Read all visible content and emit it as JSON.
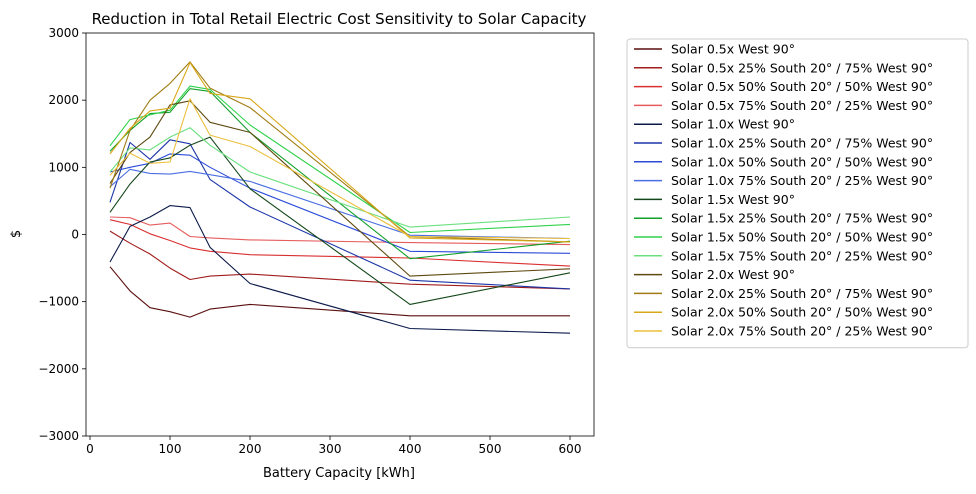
{
  "chart_data": {
    "type": "line",
    "title": "Reduction in Total Retail Electric Cost Sensitivity to Solar Capacity",
    "xlabel": "Battery Capacity [kWh]",
    "ylabel": "$",
    "xlim": [
      -5,
      630
    ],
    "ylim": [
      -3000,
      3000
    ],
    "xticks": [
      0,
      100,
      200,
      300,
      400,
      500,
      600
    ],
    "yticks": [
      -3000,
      -2000,
      -1000,
      0,
      1000,
      2000,
      3000
    ],
    "ytick_labels": [
      "−3000",
      "−2000",
      "−1000",
      "0",
      "1000",
      "2000",
      "3000"
    ],
    "grid": false,
    "legend_position": "outside right",
    "x": [
      25,
      50,
      75,
      100,
      125,
      150,
      200,
      400,
      600
    ],
    "series": [
      {
        "name": "Solar 0.5x West 90°",
        "color": "#5c0f0f",
        "values": [
          -480,
          -840,
          -1090,
          -1150,
          -1230,
          -1110,
          -1040,
          -1210,
          -1210
        ]
      },
      {
        "name": "Solar 0.5x 25% South 20° / 75% West 90°",
        "color": "#a11c1c",
        "values": [
          50,
          -130,
          -290,
          -500,
          -670,
          -620,
          -590,
          -740,
          -810
        ]
      },
      {
        "name": "Solar 0.5x 50% South 20° / 50% West 90°",
        "color": "#d93030",
        "values": [
          220,
          150,
          10,
          -90,
          -200,
          -250,
          -300,
          -350,
          -470
        ]
      },
      {
        "name": "Solar 0.5x 75% South 20° / 25% West 90°",
        "color": "#e65c5c",
        "values": [
          260,
          250,
          140,
          170,
          -30,
          -50,
          -80,
          -120,
          -150
        ]
      },
      {
        "name": "Solar 1.0x West 90°",
        "color": "#0c1a4a",
        "values": [
          -410,
          120,
          260,
          430,
          400,
          -190,
          -730,
          -1400,
          -1470
        ]
      },
      {
        "name": "Solar 1.0x 25% South 20° / 75% West 90°",
        "color": "#1c36a8",
        "values": [
          480,
          1370,
          1120,
          1410,
          1350,
          820,
          410,
          -680,
          -810
        ]
      },
      {
        "name": "Solar 1.0x 50% South 20° / 50% West 90°",
        "color": "#2b4bd8",
        "values": [
          930,
          1000,
          1060,
          1200,
          1180,
          1000,
          690,
          -250,
          -280
        ]
      },
      {
        "name": "Solar 1.0x 75% South 20° / 25% West 90°",
        "color": "#4a6ee3",
        "values": [
          710,
          970,
          910,
          900,
          940,
          890,
          790,
          -10,
          -60
        ]
      },
      {
        "name": "Solar 1.5x West 90°",
        "color": "#14481a",
        "values": [
          330,
          750,
          1080,
          1140,
          1330,
          1450,
          680,
          -1040,
          -570
        ]
      },
      {
        "name": "Solar 1.5x 25% South 20° / 75% West 90°",
        "color": "#12a02a",
        "values": [
          1240,
          1550,
          1800,
          1820,
          2170,
          2130,
          1520,
          -360,
          -100
        ]
      },
      {
        "name": "Solar 1.5x 50% South 20° / 50% West 90°",
        "color": "#2fd24a",
        "values": [
          1320,
          1710,
          1780,
          1850,
          2210,
          2160,
          1630,
          30,
          150
        ]
      },
      {
        "name": "Solar 1.5x 75% South 20° / 25% West 90°",
        "color": "#6be07e",
        "values": [
          930,
          1290,
          1260,
          1450,
          1590,
          1330,
          930,
          110,
          260
        ]
      },
      {
        "name": "Solar 2.0x West 90°",
        "color": "#5e4a10",
        "values": [
          760,
          1220,
          1450,
          1930,
          1990,
          1670,
          1520,
          -620,
          -510
        ]
      },
      {
        "name": "Solar 2.0x 25% South 20° / 75% West 90°",
        "color": "#a07c12",
        "values": [
          690,
          1550,
          2000,
          2250,
          2570,
          2180,
          1890,
          -30,
          -110
        ]
      },
      {
        "name": "Solar 2.0x 50% South 20° / 50% West 90°",
        "color": "#d8a81a",
        "values": [
          1200,
          1580,
          1840,
          1880,
          2560,
          2100,
          2020,
          -50,
          -110
        ]
      },
      {
        "name": "Solar 2.0x 75% South 20° / 25% West 90°",
        "color": "#ecbf3c",
        "values": [
          880,
          1210,
          1060,
          1080,
          2020,
          1480,
          1310,
          -30,
          -60
        ]
      }
    ]
  }
}
